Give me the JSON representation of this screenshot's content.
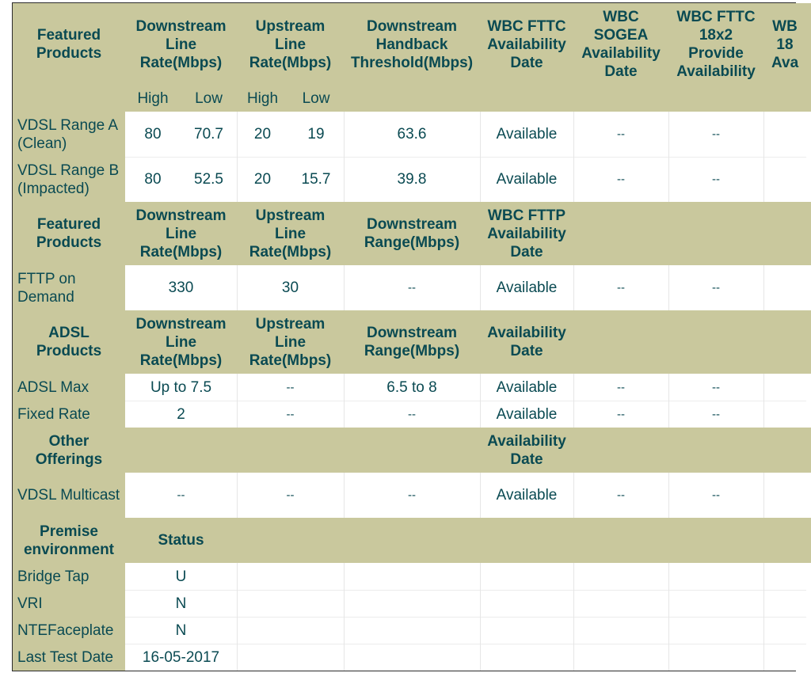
{
  "table": {
    "header1": {
      "featured": "Featured Products",
      "down_rate": "Downstream Line Rate(Mbps)",
      "up_rate": "Upstream Line Rate(Mbps)",
      "handback": "Downstream Handback Threshold(Mbps)",
      "fttc_avail": "WBC FTTC Availability Date",
      "sogea_avail": "WBC SOGEA Availability Date",
      "fttc_18x2": "WBC FTTC 18x2 Provide Availability",
      "cut": "WB 18 Ava"
    },
    "subheader": {
      "down_high": "High",
      "down_low": "Low",
      "up_high": "High",
      "up_low": "Low"
    },
    "vdsl_rows": [
      {
        "name": "VDSL Range A (Clean)",
        "down_high": "80",
        "down_low": "70.7",
        "up_high": "20",
        "up_low": "19",
        "handback": "63.6",
        "fttc": "Available",
        "sogea": "--",
        "f18": "--"
      },
      {
        "name": "VDSL Range B (Impacted)",
        "down_high": "80",
        "down_low": "52.5",
        "up_high": "20",
        "up_low": "15.7",
        "handback": "39.8",
        "fttc": "Available",
        "sogea": "--",
        "f18": "--"
      }
    ],
    "header2": {
      "featured": "Featured Products",
      "down_rate": "Downstream Line Rate(Mbps)",
      "up_rate": "Upstream Line Rate(Mbps)",
      "down_range": "Downstream Range(Mbps)",
      "fttp_avail": "WBC FTTP Availability Date"
    },
    "fttp_row": {
      "name": "FTTP on Demand",
      "down": "330",
      "up": "30",
      "range": "--",
      "avail": "Available",
      "c6": "--",
      "c7": "--"
    },
    "header3": {
      "adsl": "ADSL Products",
      "down_rate": "Downstream Line Rate(Mbps)",
      "up_rate": "Upstream Line Rate(Mbps)",
      "down_range": "Downstream Range(Mbps)",
      "avail": "Availability Date"
    },
    "adsl_rows": [
      {
        "name": "ADSL Max",
        "down": "Up to 7.5",
        "up": "--",
        "range": "6.5 to 8",
        "avail": "Available",
        "c6": "--",
        "c7": "--"
      },
      {
        "name": "Fixed Rate",
        "down": "2",
        "up": "--",
        "range": "--",
        "avail": "Available",
        "c6": "--",
        "c7": "--"
      }
    ],
    "header4": {
      "other": "Other Offerings",
      "avail": "Availability Date"
    },
    "multicast_row": {
      "name": "VDSL Multicast",
      "down": "--",
      "up": "--",
      "range": "--",
      "avail": "Available",
      "c6": "--",
      "c7": "--"
    },
    "header5": {
      "premise": "Premise environment",
      "status": "Status"
    },
    "premise_rows": [
      {
        "name": "Bridge Tap",
        "status": "U"
      },
      {
        "name": "VRI",
        "status": "N"
      },
      {
        "name": "NTEFaceplate",
        "status": "N"
      },
      {
        "name": "Last Test Date",
        "status": "16-05-2017"
      }
    ]
  }
}
